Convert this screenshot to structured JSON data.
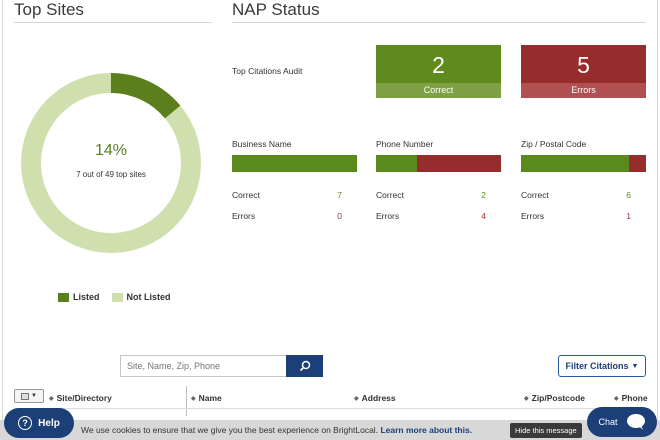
{
  "top_sites": {
    "title": "Top Sites",
    "percent_label": "14%",
    "subtitle": "7 out of 49 top sites",
    "listed_fraction": 0.14,
    "colors": {
      "listed": "#5a7f1c",
      "not_listed": "#cfe0ae"
    },
    "legend": {
      "listed": "Listed",
      "not_listed": "Not Listed"
    }
  },
  "nap": {
    "title": "NAP Status",
    "audit_label": "Top Citations Audit",
    "correct": {
      "value": "2",
      "label": "Correct"
    },
    "errors": {
      "value": "5",
      "label": "Errors"
    },
    "metrics": [
      {
        "title": "Business Name",
        "correct_label": "Correct",
        "correct": "7",
        "errors_label": "Errors",
        "errors": "0",
        "correct_fraction": 1.0
      },
      {
        "title": "Phone Number",
        "correct_label": "Correct",
        "correct": "2",
        "errors_label": "Errors",
        "errors": "4",
        "correct_fraction": 0.33
      },
      {
        "title": "Zip / Postal Code",
        "correct_label": "Correct",
        "correct": "6",
        "errors_label": "Errors",
        "errors": "1",
        "correct_fraction": 0.86
      }
    ]
  },
  "search": {
    "placeholder": "Site, Name, Zip, Phone"
  },
  "filter": {
    "label": "Filter Citations"
  },
  "table": {
    "columns": [
      "Site/Directory",
      "Name",
      "Address",
      "Zip/Postcode",
      "Phone"
    ]
  },
  "cookie": {
    "text": "We use cookies to ensure that we give you the best experience on BrightLocal.",
    "link": "Learn more about this.",
    "hide": "Hide this message"
  },
  "help": {
    "label": "Help"
  },
  "chat": {
    "label": "Chat"
  }
}
